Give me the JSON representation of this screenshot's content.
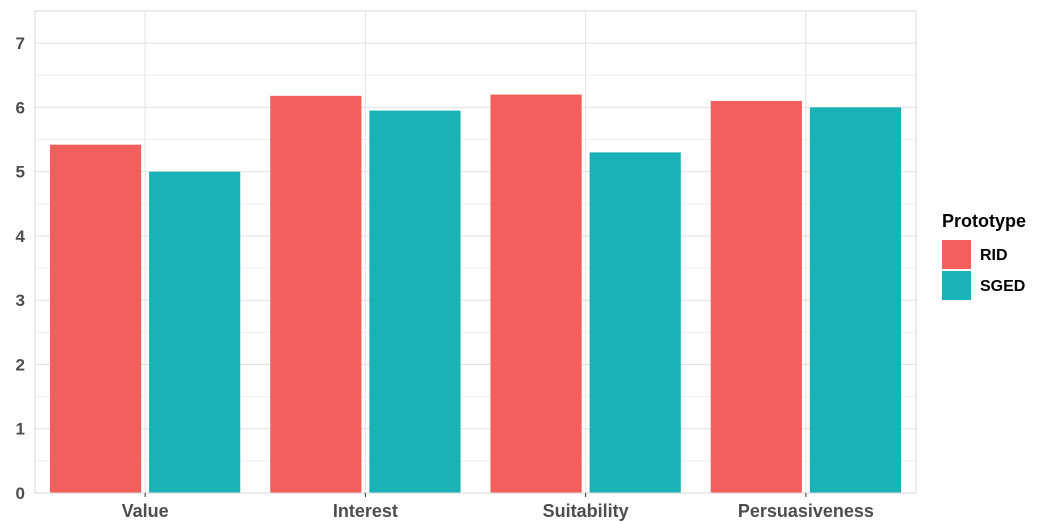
{
  "chart_data": {
    "type": "bar",
    "title": "",
    "xlabel": "",
    "ylabel": "",
    "categories": [
      "Value",
      "Interest",
      "Suitability",
      "Persuasiveness"
    ],
    "series": [
      {
        "name": "RID",
        "values": [
          5.42,
          6.18,
          6.2,
          6.1
        ],
        "color": "#F25F5C"
      },
      {
        "name": "SGED",
        "values": [
          5.0,
          5.95,
          5.3,
          6.0
        ],
        "color": "#18B2B7"
      }
    ],
    "ylim": [
      0,
      7.5
    ],
    "yticks": [
      0,
      1,
      2,
      3,
      4,
      5,
      6,
      7
    ],
    "grid": true,
    "legend": {
      "title": "Prototype",
      "position": "right"
    }
  }
}
